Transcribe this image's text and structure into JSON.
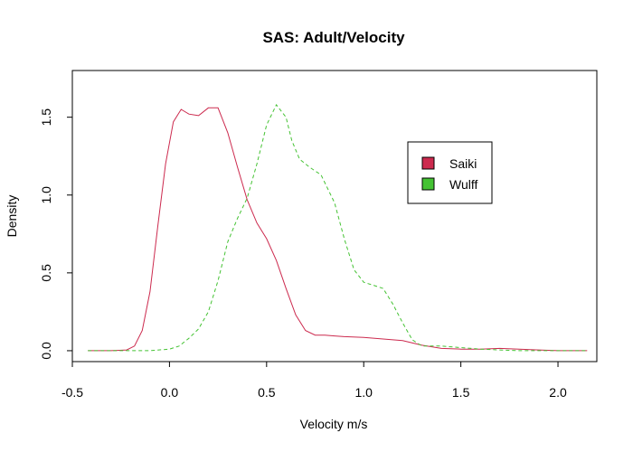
{
  "chart_data": {
    "type": "line",
    "title": "SAS: Adult/Velocity",
    "xlabel": "Velocity m/s",
    "ylabel": "Density",
    "xlim": [
      -0.5,
      2.2
    ],
    "ylim": [
      -0.07,
      1.8
    ],
    "x_ticks": [
      "-0.5",
      "0.0",
      "0.5",
      "1.0",
      "1.5",
      "2.0"
    ],
    "y_ticks": [
      "0.0",
      "0.5",
      "1.0",
      "1.5"
    ],
    "grid": false,
    "legend_position": "top-right",
    "series": [
      {
        "name": "Saiki",
        "color": "#cc2a4e",
        "dash": "solid",
        "x": [
          -0.42,
          -0.3,
          -0.22,
          -0.18,
          -0.14,
          -0.1,
          -0.06,
          -0.02,
          0.02,
          0.06,
          0.1,
          0.15,
          0.2,
          0.25,
          0.3,
          0.35,
          0.4,
          0.45,
          0.5,
          0.55,
          0.6,
          0.65,
          0.7,
          0.75,
          0.8,
          0.85,
          0.9,
          1.0,
          1.1,
          1.2,
          1.3,
          1.4,
          1.5,
          1.6,
          1.7,
          1.8,
          1.9,
          2.0,
          2.15
        ],
        "y": [
          0.0,
          0.0,
          0.005,
          0.03,
          0.13,
          0.38,
          0.8,
          1.2,
          1.47,
          1.55,
          1.52,
          1.51,
          1.56,
          1.56,
          1.4,
          1.18,
          0.97,
          0.82,
          0.72,
          0.58,
          0.4,
          0.23,
          0.13,
          0.1,
          0.1,
          0.095,
          0.09,
          0.085,
          0.075,
          0.065,
          0.035,
          0.015,
          0.01,
          0.01,
          0.015,
          0.01,
          0.005,
          0.0,
          0.0
        ]
      },
      {
        "name": "Wulff",
        "color": "#44c233",
        "dash": "dashed",
        "x": [
          -0.42,
          -0.3,
          -0.2,
          -0.1,
          0.0,
          0.05,
          0.1,
          0.15,
          0.2,
          0.25,
          0.3,
          0.35,
          0.4,
          0.45,
          0.5,
          0.55,
          0.6,
          0.63,
          0.67,
          0.72,
          0.78,
          0.85,
          0.9,
          0.95,
          1.0,
          1.05,
          1.1,
          1.15,
          1.2,
          1.25,
          1.3,
          1.35,
          1.4,
          1.5,
          1.6,
          1.7,
          1.8,
          1.9,
          2.0,
          2.15
        ],
        "y": [
          0.0,
          0.0,
          0.0,
          0.0,
          0.01,
          0.03,
          0.08,
          0.14,
          0.25,
          0.45,
          0.7,
          0.85,
          0.98,
          1.2,
          1.45,
          1.58,
          1.5,
          1.35,
          1.23,
          1.18,
          1.13,
          0.95,
          0.72,
          0.52,
          0.44,
          0.42,
          0.4,
          0.3,
          0.18,
          0.07,
          0.03,
          0.03,
          0.03,
          0.02,
          0.01,
          0.005,
          0.0,
          0.0,
          0.0,
          0.0
        ]
      }
    ]
  }
}
